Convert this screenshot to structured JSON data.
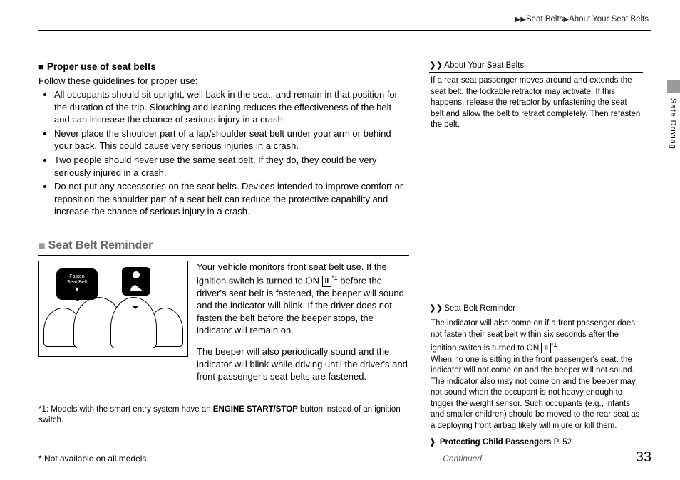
{
  "breadcrumb": {
    "part1": "Seat Belts",
    "part2": "About Your Seat Belts"
  },
  "sideLabel": "Safe Driving",
  "proper": {
    "heading": "Proper use of seat belts",
    "intro": "Follow these guidelines for proper use:",
    "b1": "All occupants should sit upright, well back in the seat, and remain in that position for the duration of the trip. Slouching and leaning reduces the effectiveness of the belt and can increase the chance of serious injury in a crash.",
    "b2": "Never place the shoulder part of a lap/shoulder seat belt under your arm or behind your back. This could cause very serious injuries in a crash.",
    "b3": "Two people should never use the same seat belt. If they do, they could be very seriously injured in a crash.",
    "b4": "Do not put any accessories on the seat belts. Devices intended to improve comfort or reposition the shoulder part of a seat belt can reduce the protective capability and increase the chance of serious injury in a crash."
  },
  "reminder": {
    "heading": "Seat Belt Reminder",
    "bubble": "Fasten\nSeat Belt",
    "p1a": "Your vehicle monitors front seat belt use. If the ignition switch is turned to ON ",
    "p1b": " before the driver's seat belt is fastened, the beeper will sound and the indicator will blink. If the driver does not fasten the belt before the beeper stops, the indicator will remain on.",
    "p2": "The beeper will also periodically sound and the indicator will blink while driving until the driver's and front passenger's seat belts are fastened."
  },
  "ignitionGlyph": "II",
  "sup1": "*1",
  "footnote": {
    "pre": "*1: Models with the smart entry system have an ",
    "bold": "ENGINE START/STOP",
    "post": " button instead of an ignition switch."
  },
  "footer": {
    "left": "* Not available on all models",
    "center": "Continued",
    "page": "33"
  },
  "side1": {
    "head": "About Your Seat Belts",
    "body": "If a rear seat passenger moves around and extends the seat belt, the lockable retractor may activate. If this happens, release the retractor by unfastening the seat belt and allow the belt to retract completely. Then refasten the belt."
  },
  "side2": {
    "head": "Seat Belt Reminder",
    "b1a": "The indicator will also come on if a front passenger does not fasten their seat belt within six seconds after the ignition switch is turned to ON ",
    "b1b": ".",
    "b2": "When no one is sitting in the front passenger's seat, the indicator will not come on and the beeper will not sound. The indicator also may not come on and the beeper may not sound when the occupant is not heavy enough to trigger the weight sensor. Such occupants (e.g., infants and smaller children) should be moved to the rear seat as a deploying front airbag likely will injure or kill them."
  },
  "xref": {
    "label": "Protecting Child Passengers",
    "page": "P. 52"
  }
}
